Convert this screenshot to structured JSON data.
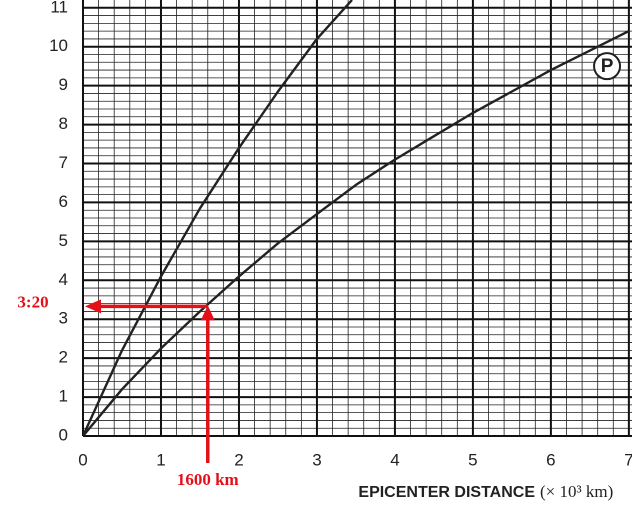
{
  "chart_data": {
    "type": "line",
    "x_label": "EPICENTER DISTANCE",
    "x_label_unit": "(× 10³ km)",
    "series": [
      {
        "x": [
          0,
          0.5,
          1,
          1.5,
          2,
          2.5,
          3,
          3.45
        ],
        "values": [
          0,
          2.2,
          4.1,
          5.85,
          7.4,
          8.85,
          10.2,
          11.2
        ],
        "color": "#222222"
      },
      {
        "name": "P",
        "x": [
          0,
          0.5,
          1,
          1.5,
          2,
          2.5,
          3,
          3.5,
          4,
          4.5,
          5,
          5.5,
          6,
          6.5,
          7
        ],
        "values": [
          0,
          1.2,
          2.25,
          3.2,
          4.1,
          4.95,
          5.7,
          6.45,
          7.1,
          7.7,
          8.3,
          8.85,
          9.4,
          9.9,
          10.4
        ],
        "color": "#222222",
        "label_x": 6.72,
        "label_y": 9.5
      }
    ],
    "xlim": [
      0,
      7.04
    ],
    "ylim": [
      0,
      11.2
    ],
    "xticks": [
      0,
      1,
      2,
      3,
      4,
      5,
      6,
      7
    ],
    "yticks": [
      0,
      1,
      2,
      3,
      4,
      5,
      6,
      7,
      8,
      9,
      10,
      11
    ],
    "grid": true,
    "annotations": [
      {
        "text": "3:20",
        "y": 3.33,
        "color": "#e3101a"
      },
      {
        "text": "1600 km",
        "x": 1.6,
        "color": "#e3101a"
      }
    ]
  }
}
